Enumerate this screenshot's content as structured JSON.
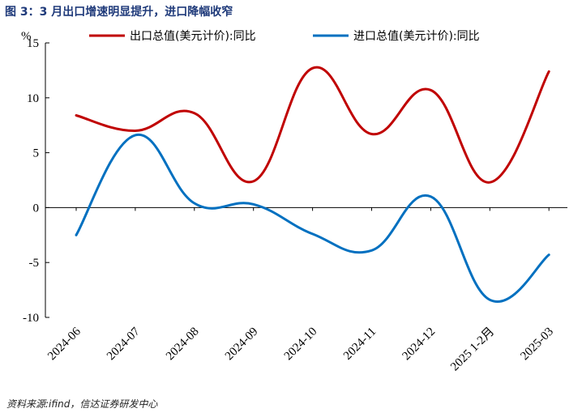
{
  "title": "图 3：3 月出口增速明显提升，进口降幅收窄",
  "source": "资料来源:ifind，信达证券研发中心",
  "chart_data": {
    "type": "line",
    "categories": [
      "2024-06",
      "2024-07",
      "2024-08",
      "2024-09",
      "2024-10",
      "2024-11",
      "2024-12",
      "2025 1-2月",
      "2025-03"
    ],
    "yunit": "%",
    "ylim": [
      -10,
      15
    ],
    "yticks": [
      15,
      10,
      5,
      0,
      -5,
      -10
    ],
    "grid": false,
    "legend_position": "top",
    "series": [
      {
        "name": "出口总值(美元计价):同比",
        "color": "#c00000",
        "values": [
          8.4,
          7.0,
          8.6,
          2.4,
          12.7,
          6.7,
          10.7,
          2.3,
          12.4
        ]
      },
      {
        "name": "进口总值(美元计价):同比",
        "color": "#0070c0",
        "values": [
          -2.5,
          6.6,
          0.4,
          0.3,
          -2.4,
          -3.9,
          1.0,
          -8.4,
          -4.3
        ]
      }
    ]
  }
}
